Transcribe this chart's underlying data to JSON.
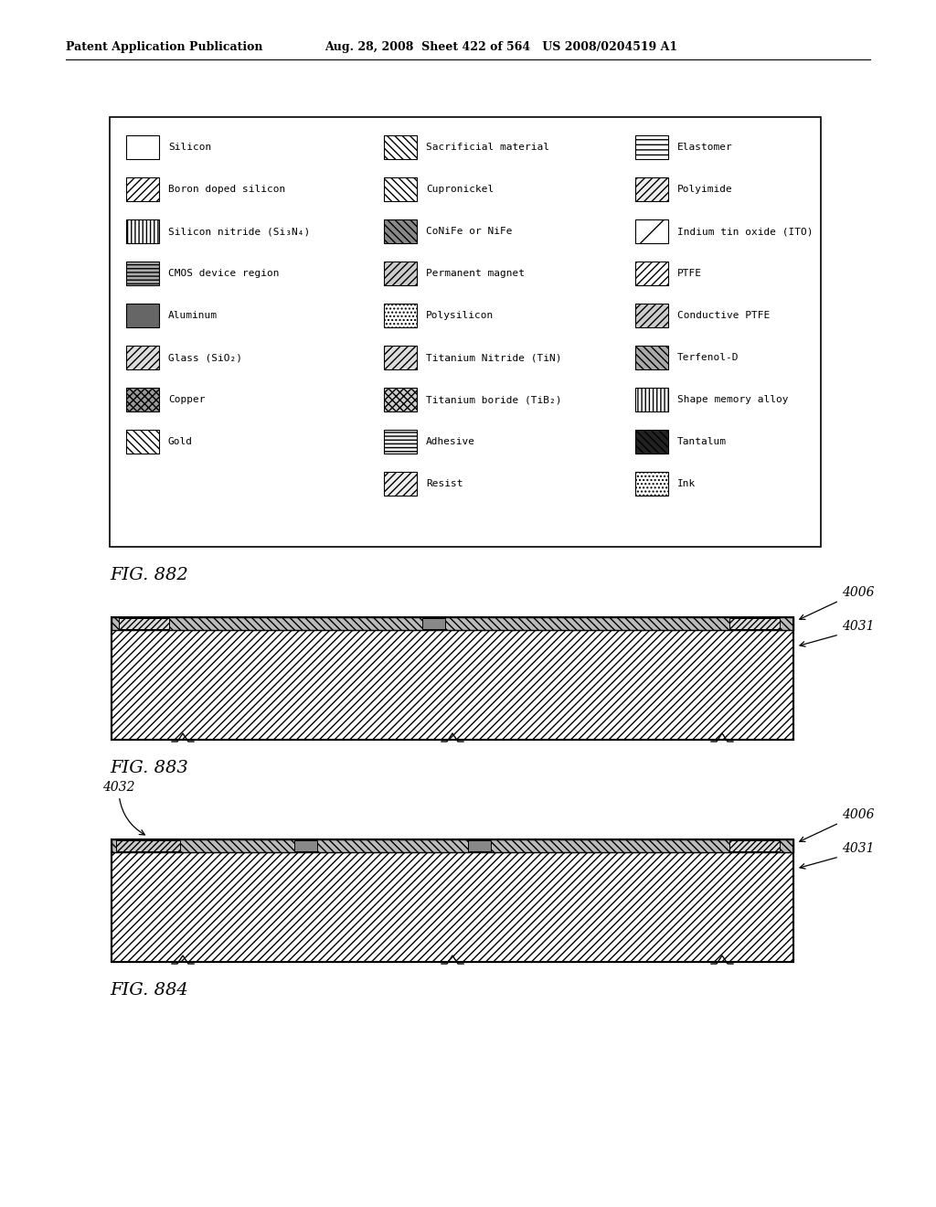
{
  "header_left": "Patent Application Publication",
  "header_mid": "Aug. 28, 2008  Sheet 422 of 564   US 2008/0204519 A1",
  "fig882_label": "FIG. 882",
  "fig883_label": "FIG. 883",
  "fig884_label": "FIG. 884",
  "bg_color": "#ffffff",
  "col1_items": [
    {
      "label": "Silicon",
      "hatch": "",
      "fc": "white",
      "ec": "black"
    },
    {
      "label": "Boron doped silicon",
      "hatch": "////",
      "fc": "white",
      "ec": "black"
    },
    {
      "label": "Silicon nitride (Si₃N₄)",
      "hatch": "||||",
      "fc": "white",
      "ec": "black"
    },
    {
      "label": "CMOS device region",
      "hatch": "----",
      "fc": "#aaaaaa",
      "ec": "black"
    },
    {
      "label": "Aluminum",
      "hatch": "",
      "fc": "#666666",
      "ec": "black"
    },
    {
      "label": "Glass (SiO₂)",
      "hatch": "////",
      "fc": "#dddddd",
      "ec": "black"
    },
    {
      "label": "Copper",
      "hatch": "xxxx",
      "fc": "#999999",
      "ec": "black"
    },
    {
      "label": "Gold",
      "hatch": "\\\\\\\\",
      "fc": "white",
      "ec": "black"
    }
  ],
  "col2_items": [
    {
      "label": "Sacrificial material",
      "hatch": "\\\\\\\\",
      "fc": "white",
      "ec": "black"
    },
    {
      "label": "Cupronickel",
      "hatch": "\\\\\\\\",
      "fc": "white",
      "ec": "black"
    },
    {
      "label": "CoNiFe or NiFe",
      "hatch": "\\\\\\\\",
      "fc": "#888888",
      "ec": "black"
    },
    {
      "label": "Permanent magnet",
      "hatch": "////",
      "fc": "#cccccc",
      "ec": "black"
    },
    {
      "label": "Polysilicon",
      "hatch": "....",
      "fc": "white",
      "ec": "black"
    },
    {
      "label": "Titanium Nitride (TiN)",
      "hatch": "////",
      "fc": "#dddddd",
      "ec": "black"
    },
    {
      "label": "Titanium boride (TiB₂)",
      "hatch": "xxxx",
      "fc": "#cccccc",
      "ec": "black"
    },
    {
      "label": "Adhesive",
      "hatch": "----",
      "fc": "#eeeeee",
      "ec": "black"
    },
    {
      "label": "Resist",
      "hatch": "////",
      "fc": "#eeeeee",
      "ec": "black"
    }
  ],
  "col3_items": [
    {
      "label": "Elastomer",
      "hatch": "---",
      "fc": "white",
      "ec": "black"
    },
    {
      "label": "Polyimide",
      "hatch": "////",
      "fc": "#eeeeee",
      "ec": "black"
    },
    {
      "label": "Indium tin oxide (ITO)",
      "hatch": "/",
      "fc": "white",
      "ec": "black"
    },
    {
      "label": "PTFE",
      "hatch": "////",
      "fc": "white",
      "ec": "black"
    },
    {
      "label": "Conductive PTFE",
      "hatch": "////",
      "fc": "#cccccc",
      "ec": "black"
    },
    {
      "label": "Terfenol-D",
      "hatch": "\\\\\\\\",
      "fc": "#aaaaaa",
      "ec": "black"
    },
    {
      "label": "Shape memory alloy",
      "hatch": "||||",
      "fc": "white",
      "ec": "black"
    },
    {
      "label": "Tantalum",
      "hatch": "\\\\\\\\",
      "fc": "#222222",
      "ec": "black"
    },
    {
      "label": "Ink",
      "hatch": "....",
      "fc": "white",
      "ec": "black"
    }
  ]
}
